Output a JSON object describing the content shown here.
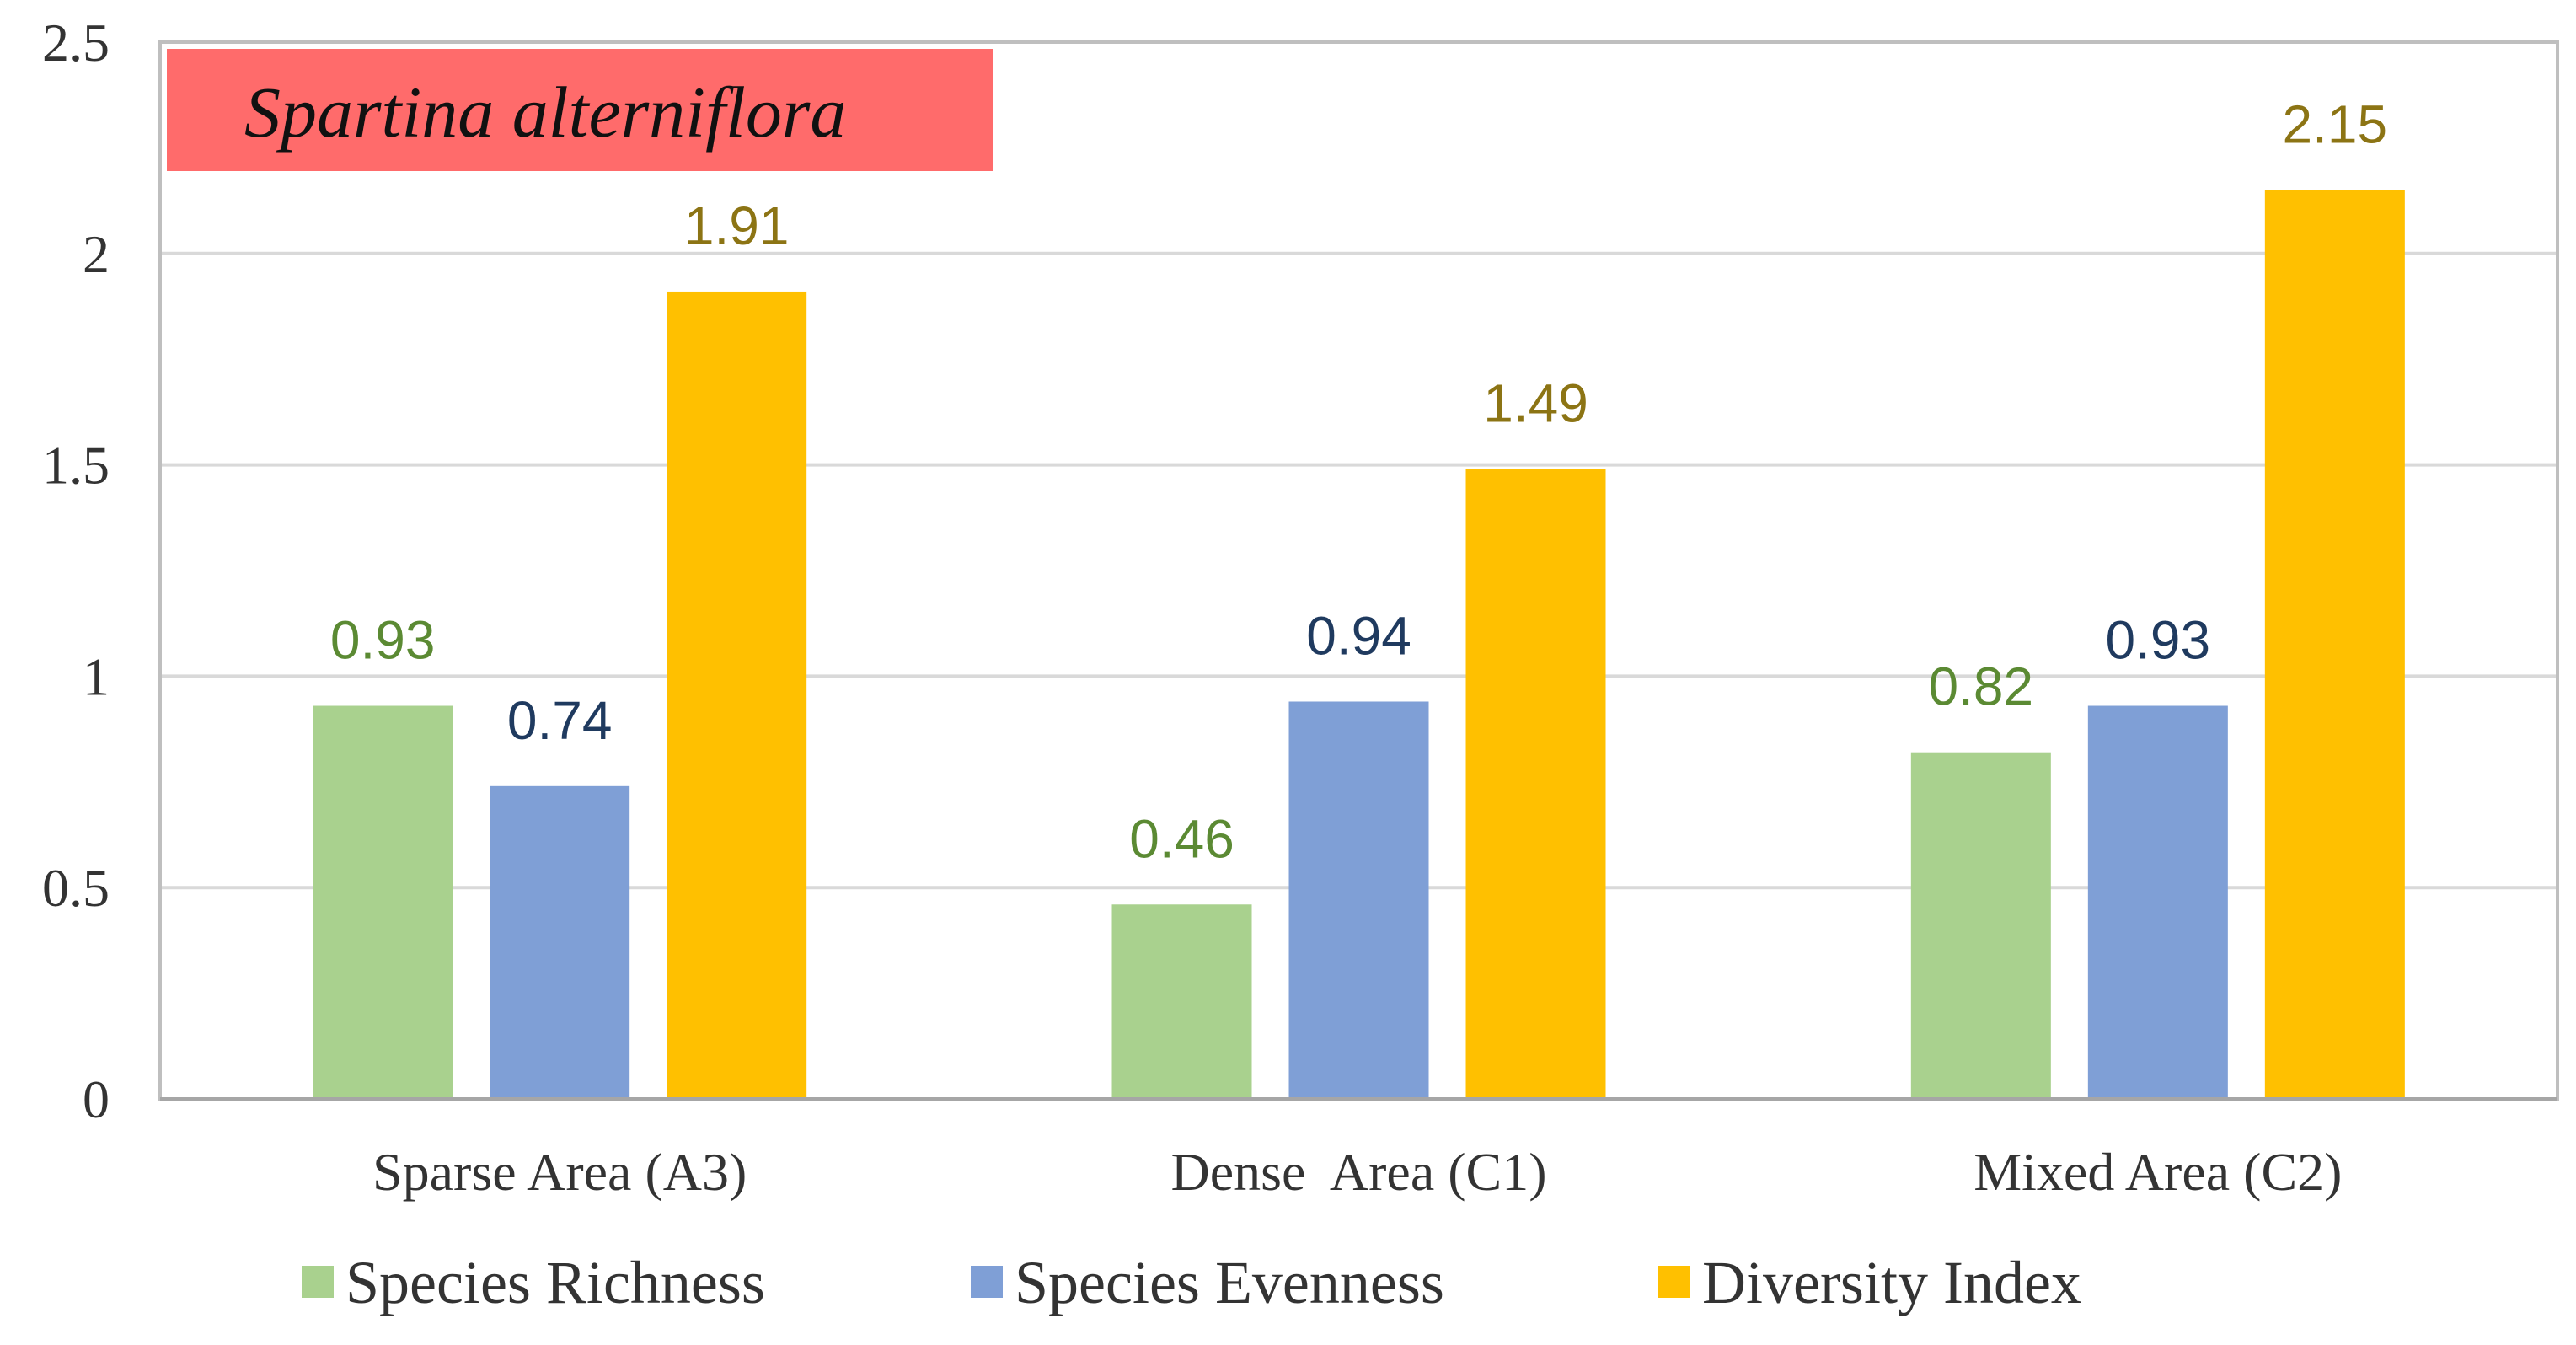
{
  "chart_data": {
    "type": "bar",
    "title": "Spartina alterniflora",
    "categories": [
      "Sparse Area (A3)",
      "Dense  Area (C1)",
      "Mixed Area (C2)"
    ],
    "series": [
      {
        "name": "Species Richness",
        "color": "#A9D18E",
        "label_color": "#5B8A33",
        "values": [
          0.93,
          0.46,
          0.82
        ]
      },
      {
        "name": "Species Evenness",
        "color": "#7F9FD6",
        "label_color": "#1F3A5F",
        "values": [
          0.74,
          0.94,
          0.93
        ]
      },
      {
        "name": "Diversity Index",
        "color": "#FFC000",
        "label_color": "#8C7414",
        "values": [
          1.91,
          1.49,
          2.15
        ]
      }
    ],
    "ylim": [
      0,
      2.5
    ],
    "yticks": [
      "0",
      "0.5",
      "1",
      "1.5",
      "2",
      "2.5"
    ],
    "xlabel": "",
    "ylabel": "",
    "grid": true,
    "legend_position": "bottom",
    "title_box_color": "#FF6B6B"
  }
}
